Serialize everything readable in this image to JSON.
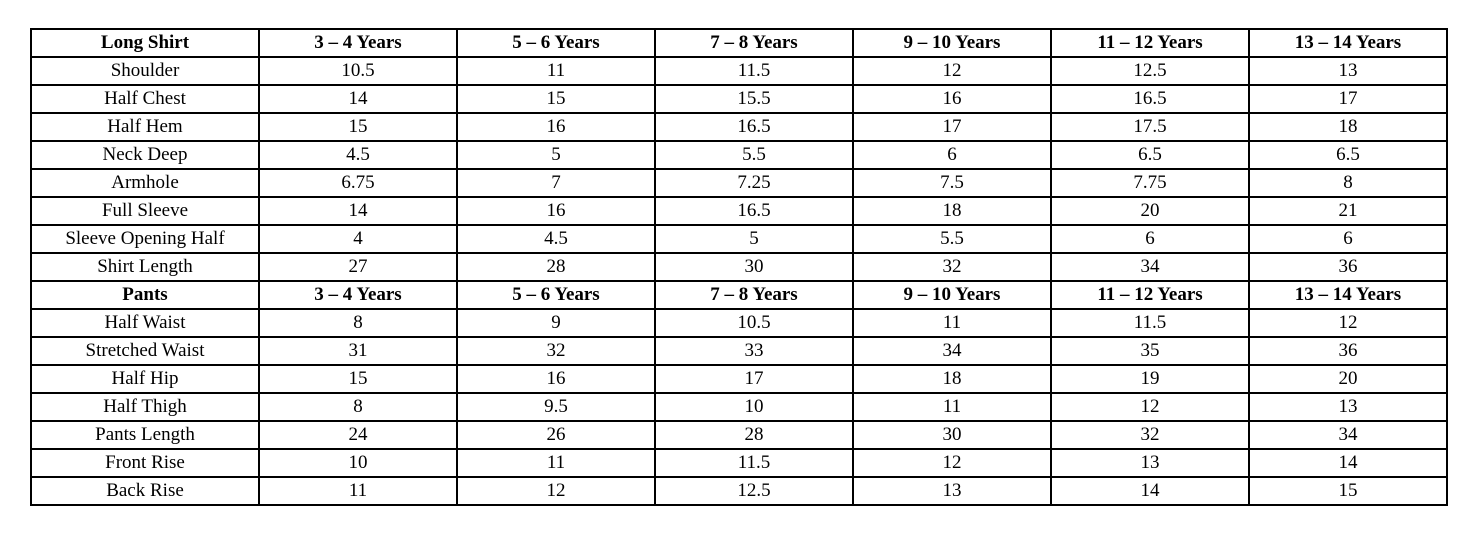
{
  "table": {
    "columns": [
      "3 – 4 Years",
      "5 – 6 Years",
      "7 – 8 Years",
      "9 – 10 Years",
      "11 – 12 Years",
      "13 – 14 Years"
    ],
    "sections": [
      {
        "title": "Long Shirt",
        "rows": [
          {
            "label": "Shoulder",
            "values": [
              "10.5",
              "11",
              "11.5",
              "12",
              "12.5",
              "13"
            ]
          },
          {
            "label": "Half Chest",
            "values": [
              "14",
              "15",
              "15.5",
              "16",
              "16.5",
              "17"
            ]
          },
          {
            "label": "Half Hem",
            "values": [
              "15",
              "16",
              "16.5",
              "17",
              "17.5",
              "18"
            ]
          },
          {
            "label": "Neck Deep",
            "values": [
              "4.5",
              "5",
              "5.5",
              "6",
              "6.5",
              "6.5"
            ]
          },
          {
            "label": "Armhole",
            "values": [
              "6.75",
              "7",
              "7.25",
              "7.5",
              "7.75",
              "8"
            ]
          },
          {
            "label": "Full Sleeve",
            "values": [
              "14",
              "16",
              "16.5",
              "18",
              "20",
              "21"
            ]
          },
          {
            "label": "Sleeve Opening Half",
            "values": [
              "4",
              "4.5",
              "5",
              "5.5",
              "6",
              "6"
            ]
          },
          {
            "label": "Shirt Length",
            "values": [
              "27",
              "28",
              "30",
              "32",
              "34",
              "36"
            ]
          }
        ]
      },
      {
        "title": "Pants",
        "rows": [
          {
            "label": "Half Waist",
            "values": [
              "8",
              "9",
              "10.5",
              "11",
              "11.5",
              "12"
            ]
          },
          {
            "label": "Stretched Waist",
            "values": [
              "31",
              "32",
              "33",
              "34",
              "35",
              "36"
            ]
          },
          {
            "label": "Half Hip",
            "values": [
              "15",
              "16",
              "17",
              "18",
              "19",
              "20"
            ]
          },
          {
            "label": "Half Thigh",
            "values": [
              "8",
              "9.5",
              "10",
              "11",
              "12",
              "13"
            ]
          },
          {
            "label": "Pants Length",
            "values": [
              "24",
              "26",
              "28",
              "30",
              "32",
              "34"
            ]
          },
          {
            "label": "Front Rise",
            "values": [
              "10",
              "11",
              "11.5",
              "12",
              "13",
              "14"
            ]
          },
          {
            "label": "Back Rise",
            "values": [
              "11",
              "12",
              "12.5",
              "13",
              "14",
              "15"
            ]
          }
        ]
      }
    ]
  },
  "colors": {
    "border": "#000000",
    "background": "#ffffff",
    "text": "#000000"
  }
}
